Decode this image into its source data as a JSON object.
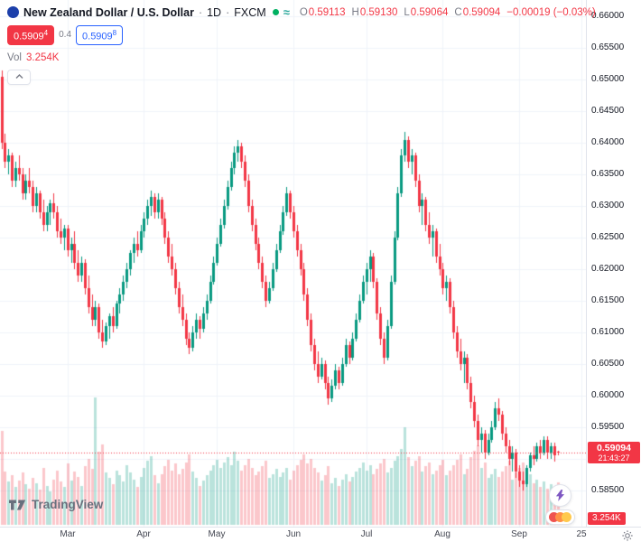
{
  "colors": {
    "up": "#089981",
    "down": "#f23645",
    "up_volume": "rgba(8,153,129,0.28)",
    "down_volume": "rgba(242,54,69,0.28)",
    "accent": "#2962ff",
    "grid": "#f0f3fa",
    "axis_text": "#131722",
    "muted_text": "#787b86",
    "status_green": "#00b061",
    "last_price_line": "#f23645"
  },
  "header": {
    "symbol_name": "New Zealand Dollar / U.S. Dollar",
    "separator": "·",
    "interval": "1D",
    "exchange": "FXCM",
    "status_icon_char": "≈",
    "ohlc": {
      "o_label": "O",
      "o": "0.59113",
      "h_label": "H",
      "h": "0.59130",
      "l_label": "L",
      "l": "0.59064",
      "c_label": "C",
      "c": "0.59094",
      "change": "−0.00019 (−0.03%)"
    },
    "sell_chip": {
      "main": "0.5909",
      "sup": "4"
    },
    "spread": "0.4",
    "buy_chip": {
      "main": "0.5909",
      "sup": "8"
    },
    "vol_label": "Vol",
    "vol_value": "3.254K"
  },
  "price_scale": {
    "ticks": [
      "0.66000",
      "0.65500",
      "0.65000",
      "0.64500",
      "0.64000",
      "0.63500",
      "0.63000",
      "0.62500",
      "0.62000",
      "0.61500",
      "0.61000",
      "0.60500",
      "0.60000",
      "0.59500",
      "0.59000",
      "0.58500"
    ],
    "last_price_tag": {
      "price": "0.59094",
      "countdown": "21:43:27"
    },
    "volume_tag": "3.254K"
  },
  "time_scale": {
    "ticks": [
      {
        "label": "Mar",
        "index": 19
      },
      {
        "label": "Apr",
        "index": 41
      },
      {
        "label": "May",
        "index": 62
      },
      {
        "label": "Jun",
        "index": 84
      },
      {
        "label": "Jul",
        "index": 105
      },
      {
        "label": "Aug",
        "index": 127
      },
      {
        "label": "Sep",
        "index": 149
      },
      {
        "label": "25",
        "index": 167
      }
    ]
  },
  "footer": {
    "brand": "TradingView"
  },
  "chart_data": {
    "type": "candlestick",
    "title": "New Zealand Dollar / U.S. Dollar",
    "interval": "1D",
    "exchange": "FXCM",
    "price_axis": {
      "min": 0.585,
      "max": 0.66,
      "grid_step": 0.005
    },
    "last_price": 0.59094,
    "last_volume_k": 3.254,
    "fields": [
      "open",
      "high",
      "low",
      "close",
      "volume_k"
    ],
    "candles": [
      [
        0.6505,
        0.6515,
        0.639,
        0.64,
        7.2
      ],
      [
        0.64,
        0.6415,
        0.636,
        0.637,
        4.1
      ],
      [
        0.637,
        0.639,
        0.635,
        0.638,
        3.3
      ],
      [
        0.638,
        0.6385,
        0.633,
        0.634,
        3.8
      ],
      [
        0.634,
        0.637,
        0.633,
        0.636,
        2.9
      ],
      [
        0.636,
        0.638,
        0.634,
        0.635,
        3.4
      ],
      [
        0.635,
        0.636,
        0.631,
        0.632,
        4.0
      ],
      [
        0.632,
        0.635,
        0.631,
        0.634,
        3.1
      ],
      [
        0.634,
        0.636,
        0.632,
        0.633,
        2.8
      ],
      [
        0.633,
        0.634,
        0.629,
        0.63,
        3.6
      ],
      [
        0.63,
        0.633,
        0.629,
        0.632,
        3.2
      ],
      [
        0.632,
        0.6325,
        0.628,
        0.629,
        2.7
      ],
      [
        0.629,
        0.631,
        0.626,
        0.627,
        4.4
      ],
      [
        0.627,
        0.63,
        0.626,
        0.629,
        3.0
      ],
      [
        0.629,
        0.631,
        0.627,
        0.6305,
        2.6
      ],
      [
        0.6305,
        0.632,
        0.628,
        0.629,
        3.5
      ],
      [
        0.629,
        0.63,
        0.625,
        0.626,
        4.2
      ],
      [
        0.626,
        0.628,
        0.624,
        0.625,
        3.3
      ],
      [
        0.625,
        0.627,
        0.623,
        0.6265,
        2.9
      ],
      [
        0.6265,
        0.627,
        0.622,
        0.623,
        4.7
      ],
      [
        0.623,
        0.625,
        0.621,
        0.624,
        3.4
      ],
      [
        0.624,
        0.626,
        0.62,
        0.621,
        4.1
      ],
      [
        0.621,
        0.623,
        0.618,
        0.619,
        3.7
      ],
      [
        0.619,
        0.622,
        0.618,
        0.621,
        3.0
      ],
      [
        0.621,
        0.6215,
        0.616,
        0.617,
        4.5
      ],
      [
        0.617,
        0.619,
        0.613,
        0.614,
        5.1
      ],
      [
        0.614,
        0.616,
        0.611,
        0.612,
        4.3
      ],
      [
        0.612,
        0.615,
        0.611,
        0.614,
        9.8
      ],
      [
        0.614,
        0.6145,
        0.609,
        0.61,
        5.6
      ],
      [
        0.61,
        0.612,
        0.6075,
        0.6085,
        6.2
      ],
      [
        0.6085,
        0.6115,
        0.608,
        0.611,
        4.0
      ],
      [
        0.611,
        0.613,
        0.609,
        0.6125,
        3.6
      ],
      [
        0.6125,
        0.614,
        0.61,
        0.611,
        3.1
      ],
      [
        0.611,
        0.615,
        0.6105,
        0.6145,
        4.2
      ],
      [
        0.6145,
        0.617,
        0.613,
        0.616,
        3.8
      ],
      [
        0.616,
        0.619,
        0.615,
        0.618,
        3.3
      ],
      [
        0.618,
        0.621,
        0.617,
        0.62,
        4.6
      ],
      [
        0.62,
        0.623,
        0.619,
        0.6225,
        4.0
      ],
      [
        0.6225,
        0.625,
        0.621,
        0.624,
        3.5
      ],
      [
        0.624,
        0.626,
        0.622,
        0.623,
        2.9
      ],
      [
        0.623,
        0.627,
        0.6225,
        0.626,
        3.7
      ],
      [
        0.626,
        0.629,
        0.625,
        0.628,
        4.4
      ],
      [
        0.628,
        0.631,
        0.627,
        0.63,
        4.9
      ],
      [
        0.63,
        0.6325,
        0.6285,
        0.6315,
        5.3
      ],
      [
        0.6315,
        0.632,
        0.628,
        0.629,
        3.8
      ],
      [
        0.629,
        0.632,
        0.628,
        0.631,
        3.2
      ],
      [
        0.631,
        0.6315,
        0.627,
        0.628,
        3.9
      ],
      [
        0.628,
        0.629,
        0.624,
        0.625,
        4.5
      ],
      [
        0.625,
        0.626,
        0.621,
        0.622,
        5.0
      ],
      [
        0.622,
        0.624,
        0.619,
        0.62,
        4.2
      ],
      [
        0.62,
        0.621,
        0.616,
        0.617,
        4.7
      ],
      [
        0.617,
        0.618,
        0.613,
        0.614,
        3.9
      ],
      [
        0.614,
        0.616,
        0.611,
        0.612,
        4.3
      ],
      [
        0.612,
        0.613,
        0.608,
        0.609,
        4.8
      ],
      [
        0.609,
        0.61,
        0.6065,
        0.6075,
        5.4
      ],
      [
        0.6075,
        0.611,
        0.607,
        0.61,
        4.1
      ],
      [
        0.61,
        0.613,
        0.609,
        0.612,
        3.6
      ],
      [
        0.612,
        0.6125,
        0.609,
        0.6105,
        3.0
      ],
      [
        0.6105,
        0.614,
        0.61,
        0.613,
        3.4
      ],
      [
        0.613,
        0.616,
        0.612,
        0.615,
        3.8
      ],
      [
        0.615,
        0.619,
        0.6145,
        0.618,
        4.2
      ],
      [
        0.618,
        0.622,
        0.6175,
        0.621,
        4.6
      ],
      [
        0.621,
        0.625,
        0.6205,
        0.624,
        5.0
      ],
      [
        0.624,
        0.628,
        0.6235,
        0.627,
        4.4
      ],
      [
        0.627,
        0.631,
        0.6265,
        0.63,
        4.8
      ],
      [
        0.63,
        0.634,
        0.6295,
        0.633,
        5.2
      ],
      [
        0.633,
        0.637,
        0.6325,
        0.636,
        4.6
      ],
      [
        0.636,
        0.6395,
        0.635,
        0.6385,
        5.6
      ],
      [
        0.6385,
        0.6405,
        0.637,
        0.6395,
        4.9
      ],
      [
        0.6395,
        0.64,
        0.636,
        0.637,
        4.2
      ],
      [
        0.637,
        0.638,
        0.633,
        0.634,
        4.6
      ],
      [
        0.634,
        0.635,
        0.629,
        0.63,
        5.1
      ],
      [
        0.63,
        0.631,
        0.626,
        0.627,
        4.4
      ],
      [
        0.627,
        0.628,
        0.623,
        0.624,
        3.8
      ],
      [
        0.624,
        0.625,
        0.62,
        0.621,
        4.1
      ],
      [
        0.621,
        0.622,
        0.617,
        0.618,
        4.5
      ],
      [
        0.618,
        0.619,
        0.614,
        0.615,
        4.9
      ],
      [
        0.615,
        0.618,
        0.6145,
        0.617,
        3.6
      ],
      [
        0.617,
        0.621,
        0.6165,
        0.62,
        3.9
      ],
      [
        0.62,
        0.624,
        0.6195,
        0.623,
        4.3
      ],
      [
        0.623,
        0.627,
        0.6225,
        0.626,
        3.7
      ],
      [
        0.626,
        0.63,
        0.6255,
        0.629,
        4.0
      ],
      [
        0.629,
        0.633,
        0.6285,
        0.632,
        4.4
      ],
      [
        0.632,
        0.6325,
        0.628,
        0.629,
        3.5
      ],
      [
        0.629,
        0.63,
        0.625,
        0.626,
        4.2
      ],
      [
        0.626,
        0.627,
        0.622,
        0.623,
        4.6
      ],
      [
        0.623,
        0.624,
        0.619,
        0.62,
        5.0
      ],
      [
        0.62,
        0.621,
        0.615,
        0.616,
        5.4
      ],
      [
        0.616,
        0.617,
        0.611,
        0.612,
        4.7
      ],
      [
        0.612,
        0.613,
        0.607,
        0.608,
        5.1
      ],
      [
        0.608,
        0.609,
        0.604,
        0.605,
        4.4
      ],
      [
        0.605,
        0.607,
        0.602,
        0.603,
        4.0
      ],
      [
        0.603,
        0.606,
        0.6025,
        0.605,
        3.4
      ],
      [
        0.605,
        0.6055,
        0.601,
        0.602,
        3.8
      ],
      [
        0.602,
        0.603,
        0.5985,
        0.5995,
        4.5
      ],
      [
        0.5995,
        0.6025,
        0.599,
        0.6015,
        3.2
      ],
      [
        0.6015,
        0.605,
        0.601,
        0.604,
        3.6
      ],
      [
        0.604,
        0.6045,
        0.601,
        0.602,
        3.0
      ],
      [
        0.602,
        0.606,
        0.6015,
        0.605,
        3.5
      ],
      [
        0.605,
        0.609,
        0.6045,
        0.608,
        3.9
      ],
      [
        0.608,
        0.6085,
        0.605,
        0.606,
        3.3
      ],
      [
        0.606,
        0.61,
        0.6055,
        0.609,
        3.7
      ],
      [
        0.609,
        0.613,
        0.6085,
        0.612,
        4.1
      ],
      [
        0.612,
        0.616,
        0.6115,
        0.615,
        4.4
      ],
      [
        0.615,
        0.619,
        0.6145,
        0.618,
        4.8
      ],
      [
        0.618,
        0.621,
        0.616,
        0.62,
        4.2
      ],
      [
        0.62,
        0.623,
        0.618,
        0.622,
        4.6
      ],
      [
        0.622,
        0.6225,
        0.617,
        0.618,
        3.9
      ],
      [
        0.618,
        0.6185,
        0.612,
        0.613,
        4.3
      ],
      [
        0.613,
        0.614,
        0.608,
        0.609,
        4.7
      ],
      [
        0.609,
        0.61,
        0.605,
        0.606,
        5.1
      ],
      [
        0.606,
        0.612,
        0.6055,
        0.611,
        4.0
      ],
      [
        0.611,
        0.619,
        0.6105,
        0.618,
        4.4
      ],
      [
        0.618,
        0.626,
        0.6175,
        0.625,
        4.9
      ],
      [
        0.625,
        0.633,
        0.6245,
        0.632,
        5.3
      ],
      [
        0.632,
        0.639,
        0.6315,
        0.638,
        5.8
      ],
      [
        0.638,
        0.6417,
        0.637,
        0.6405,
        7.5
      ],
      [
        0.6405,
        0.641,
        0.636,
        0.637,
        5.2
      ],
      [
        0.637,
        0.639,
        0.635,
        0.638,
        4.5
      ],
      [
        0.638,
        0.6385,
        0.633,
        0.634,
        4.9
      ],
      [
        0.634,
        0.635,
        0.629,
        0.63,
        5.3
      ],
      [
        0.63,
        0.632,
        0.627,
        0.631,
        4.1
      ],
      [
        0.631,
        0.6315,
        0.626,
        0.627,
        4.5
      ],
      [
        0.627,
        0.629,
        0.624,
        0.625,
        4.8
      ],
      [
        0.625,
        0.627,
        0.622,
        0.626,
        3.9
      ],
      [
        0.626,
        0.6265,
        0.621,
        0.622,
        4.2
      ],
      [
        0.622,
        0.624,
        0.619,
        0.62,
        4.6
      ],
      [
        0.62,
        0.621,
        0.616,
        0.617,
        5.0
      ],
      [
        0.617,
        0.619,
        0.615,
        0.618,
        3.8
      ],
      [
        0.618,
        0.6185,
        0.613,
        0.614,
        4.2
      ],
      [
        0.614,
        0.615,
        0.609,
        0.61,
        4.6
      ],
      [
        0.61,
        0.611,
        0.606,
        0.607,
        5.0
      ],
      [
        0.607,
        0.609,
        0.604,
        0.605,
        5.4
      ],
      [
        0.605,
        0.607,
        0.602,
        0.606,
        3.9
      ],
      [
        0.606,
        0.6065,
        0.601,
        0.602,
        4.3
      ],
      [
        0.602,
        0.603,
        0.598,
        0.599,
        5.2
      ],
      [
        0.599,
        0.6,
        0.595,
        0.596,
        5.7
      ],
      [
        0.596,
        0.597,
        0.592,
        0.593,
        6.1
      ],
      [
        0.593,
        0.595,
        0.591,
        0.594,
        4.4
      ],
      [
        0.594,
        0.5945,
        0.59,
        0.591,
        4.8
      ],
      [
        0.591,
        0.594,
        0.5905,
        0.593,
        3.6
      ],
      [
        0.593,
        0.596,
        0.5925,
        0.595,
        3.9
      ],
      [
        0.595,
        0.599,
        0.5945,
        0.598,
        4.3
      ],
      [
        0.598,
        0.5995,
        0.596,
        0.597,
        3.7
      ],
      [
        0.597,
        0.5975,
        0.593,
        0.594,
        4.1
      ],
      [
        0.594,
        0.595,
        0.591,
        0.592,
        4.5
      ],
      [
        0.592,
        0.593,
        0.589,
        0.59,
        4.9
      ],
      [
        0.59,
        0.592,
        0.588,
        0.591,
        3.5
      ],
      [
        0.591,
        0.5915,
        0.587,
        0.588,
        4.0
      ],
      [
        0.588,
        0.589,
        0.5855,
        0.5865,
        4.4
      ],
      [
        0.5865,
        0.588,
        0.585,
        0.586,
        4.8
      ],
      [
        0.586,
        0.589,
        0.5855,
        0.5885,
        3.6
      ],
      [
        0.5885,
        0.591,
        0.588,
        0.5905,
        3.9
      ],
      [
        0.5905,
        0.592,
        0.589,
        0.59,
        3.2
      ],
      [
        0.59,
        0.5925,
        0.5895,
        0.592,
        3.5
      ],
      [
        0.592,
        0.593,
        0.59,
        0.591,
        2.9
      ],
      [
        0.591,
        0.5935,
        0.5905,
        0.593,
        3.3
      ],
      [
        0.593,
        0.5935,
        0.59,
        0.591,
        2.8
      ],
      [
        0.591,
        0.5925,
        0.59,
        0.592,
        3.1
      ],
      [
        0.592,
        0.5925,
        0.5895,
        0.5905,
        2.6
      ],
      [
        0.59113,
        0.5913,
        0.59064,
        0.59094,
        3.254
      ]
    ]
  }
}
